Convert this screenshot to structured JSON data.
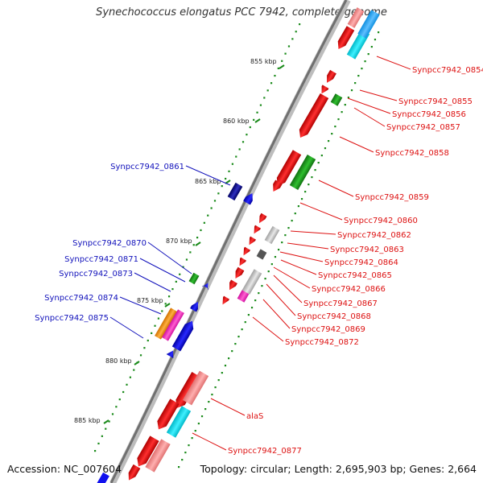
{
  "title": "Synechococcus elongatus PCC 7942, complete genome",
  "accession": "Accession: NC_007604",
  "topology": "Topology: circular; Length: 2,695,903 bp; Genes: 2,664",
  "colors": {
    "forward_cds": "#ee1111",
    "reverse_cds": "#1111ee",
    "right_label": "#dd1111",
    "left_label": "#1111bb",
    "backbone": "#888888",
    "tick": "#1a8a1a"
  },
  "kbp_ticks": [
    "855 kbp",
    "860 kbp",
    "865 kbp",
    "870 kbp",
    "875 kbp",
    "880 kbp",
    "885 kbp"
  ],
  "right_labels": [
    "Synpcc7942_0854",
    "Synpcc7942_0855",
    "Synpcc7942_0856",
    "Synpcc7942_0857",
    "Synpcc7942_0858",
    "Synpcc7942_0859",
    "Synpcc7942_0860",
    "Synpcc7942_0862",
    "Synpcc7942_0863",
    "Synpcc7942_0864",
    "Synpcc7942_0865",
    "Synpcc7942_0866",
    "Synpcc7942_0867",
    "Synpcc7942_0868",
    "Synpcc7942_0869",
    "Synpcc7942_0872",
    "alaS",
    "Synpcc7942_0877"
  ],
  "left_labels": [
    "Synpcc7942_0861",
    "Synpcc7942_0870",
    "Synpcc7942_0871",
    "Synpcc7942_0873",
    "Synpcc7942_0874",
    "Synpcc7942_0875"
  ]
}
